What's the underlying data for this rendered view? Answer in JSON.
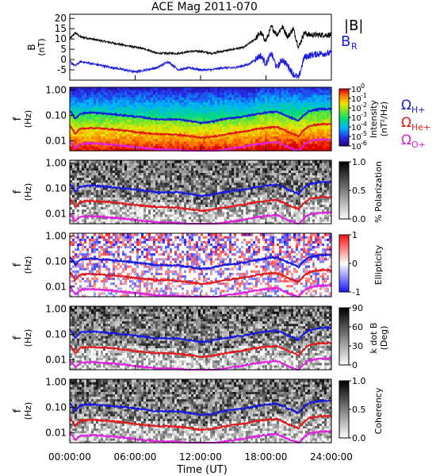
{
  "chart_data": {
    "type": "line",
    "title": "ACE Mag 2011-070",
    "xlabel": "Time (UT)",
    "x_range_hours": [
      0,
      24
    ],
    "x_ticks": [
      "00:00:00",
      "06:00:00",
      "12:00:00",
      "18:00:00",
      "24:00:00"
    ],
    "top_panel": {
      "ylabel_main": "B",
      "ylabel_unit": "(nT)",
      "ylim": [
        -10,
        22
      ],
      "y_ticks": [
        "20",
        "15",
        "10",
        "5",
        "0",
        "-5"
      ],
      "legend": [
        {
          "label": "|B|",
          "color": "#000000"
        },
        {
          "label": "B",
          "sub": "R",
          "color": "#1a1adc"
        }
      ],
      "series": [
        {
          "name": "|B|",
          "color": "#000000",
          "x": [
            0,
            0.5,
            1,
            2,
            3,
            4,
            5,
            6,
            7,
            8,
            9,
            10,
            11,
            12,
            13,
            14,
            15,
            16,
            16.5,
            17,
            17.5,
            18,
            18.5,
            19,
            19.5,
            20,
            20.5,
            21,
            21.5,
            22,
            23,
            24
          ],
          "y": [
            10,
            13,
            11,
            10,
            9,
            8,
            7,
            6,
            5,
            3,
            3,
            3,
            4,
            4,
            3,
            4,
            5,
            6,
            8,
            10,
            13,
            9,
            16,
            12,
            16,
            11,
            15,
            6,
            13,
            12,
            12,
            12
          ]
        },
        {
          "name": "B_R",
          "color": "#1a1adc",
          "x": [
            0,
            0.5,
            1,
            2,
            3,
            4,
            5,
            6,
            7,
            8,
            9,
            10,
            11,
            12,
            13,
            14,
            15,
            16,
            16.5,
            17,
            17.5,
            18,
            18.5,
            19,
            19.5,
            20,
            20.5,
            21,
            21.5,
            22,
            23,
            24
          ],
          "y": [
            -1,
            -3,
            -1,
            -2,
            -3,
            -4,
            -5,
            -6,
            -5,
            -4,
            -1,
            -5,
            -4,
            -5,
            -5,
            -4,
            -4,
            -3,
            -2,
            0,
            2,
            -2,
            3,
            -4,
            0,
            -3,
            -7,
            -9,
            1,
            2,
            3,
            3
          ]
        }
      ]
    },
    "spectral_panels": {
      "ylabel_main": "f",
      "ylabel_unit": "(Hz)",
      "y_scale": "log",
      "ylim": [
        0.004,
        1.3
      ],
      "y_ticks": [
        "1.00",
        "0.10",
        "0.01"
      ],
      "gyrofrequency_lines": [
        {
          "name": "Ω_H+",
          "label_main": "Ω",
          "label_sub": "H+",
          "color": "#1a1adc",
          "x": [
            0,
            0.5,
            1,
            2,
            3,
            4,
            5,
            6,
            7,
            8,
            9,
            10,
            11,
            12,
            13,
            14,
            15,
            16,
            17,
            18,
            19,
            20,
            21,
            22,
            23,
            24
          ],
          "y": [
            0.15,
            0.07,
            0.12,
            0.13,
            0.12,
            0.11,
            0.1,
            0.09,
            0.08,
            0.07,
            0.07,
            0.07,
            0.06,
            0.05,
            0.055,
            0.07,
            0.08,
            0.09,
            0.11,
            0.13,
            0.14,
            0.09,
            0.06,
            0.15,
            0.18,
            0.18
          ]
        },
        {
          "name": "Ω_He+",
          "label_main": "Ω",
          "label_sub": "He+",
          "color": "#e01a1a",
          "x": [
            0,
            0.5,
            1,
            2,
            3,
            4,
            5,
            6,
            7,
            8,
            9,
            10,
            11,
            12,
            13,
            14,
            15,
            16,
            17,
            18,
            19,
            20,
            21,
            22,
            23,
            24
          ],
          "y": [
            0.038,
            0.018,
            0.03,
            0.032,
            0.03,
            0.028,
            0.025,
            0.022,
            0.02,
            0.018,
            0.018,
            0.017,
            0.015,
            0.013,
            0.014,
            0.017,
            0.02,
            0.023,
            0.028,
            0.032,
            0.035,
            0.022,
            0.015,
            0.038,
            0.045,
            0.045
          ]
        },
        {
          "name": "Ω_O+",
          "label_main": "Ω",
          "label_sub": "O+",
          "color": "#e020e0",
          "x": [
            0,
            0.5,
            1,
            2,
            3,
            4,
            5,
            6,
            7,
            8,
            9,
            10,
            11,
            12,
            13,
            14,
            15,
            16,
            17,
            18,
            19,
            20,
            21,
            22,
            23,
            24
          ],
          "y": [
            0.0095,
            0.005,
            0.0075,
            0.008,
            0.0075,
            0.007,
            0.0063,
            0.0056,
            0.005,
            0.0045,
            0.0045,
            0.0043,
            0.0038,
            0.0033,
            0.0035,
            0.0043,
            0.005,
            0.0058,
            0.007,
            0.008,
            0.0088,
            0.0055,
            0.0038,
            0.0095,
            0.011,
            0.011
          ]
        }
      ],
      "panels": [
        {
          "name": "intensity",
          "colorbar_label": "Intensity",
          "colorbar_unit": "(nT²/Hz)",
          "colormap": "rainbow",
          "colorbar_ticks": [
            {
              "base": "10",
              "exp": "0"
            },
            {
              "base": "10",
              "exp": "-1"
            },
            {
              "base": "10",
              "exp": "-2"
            },
            {
              "base": "10",
              "exp": "-3"
            },
            {
              "base": "10",
              "exp": "-4"
            },
            {
              "base": "10",
              "exp": "-5"
            },
            {
              "base": "10",
              "exp": "-6"
            }
          ]
        },
        {
          "name": "polarization",
          "colorbar_label": "% Polarization",
          "colormap": "gray_reversed",
          "colorbar_ticks": [
            "1.0",
            "0.5",
            "0.0"
          ]
        },
        {
          "name": "ellipticity",
          "colorbar_label": "Ellipticity",
          "colormap": "blue_white_red",
          "colorbar_ticks": [
            "1",
            "0",
            "-1"
          ]
        },
        {
          "name": "k_dot_b",
          "colorbar_label": "k dot B",
          "colorbar_unit": "(Deg)",
          "colormap": "gray_reversed",
          "colorbar_ticks": [
            "90",
            "60",
            "30",
            "0"
          ]
        },
        {
          "name": "coherency",
          "colorbar_label": "Coherency",
          "colormap": "gray_reversed",
          "colorbar_ticks": [
            "1.0",
            "0.5",
            "0.0"
          ]
        }
      ]
    }
  }
}
